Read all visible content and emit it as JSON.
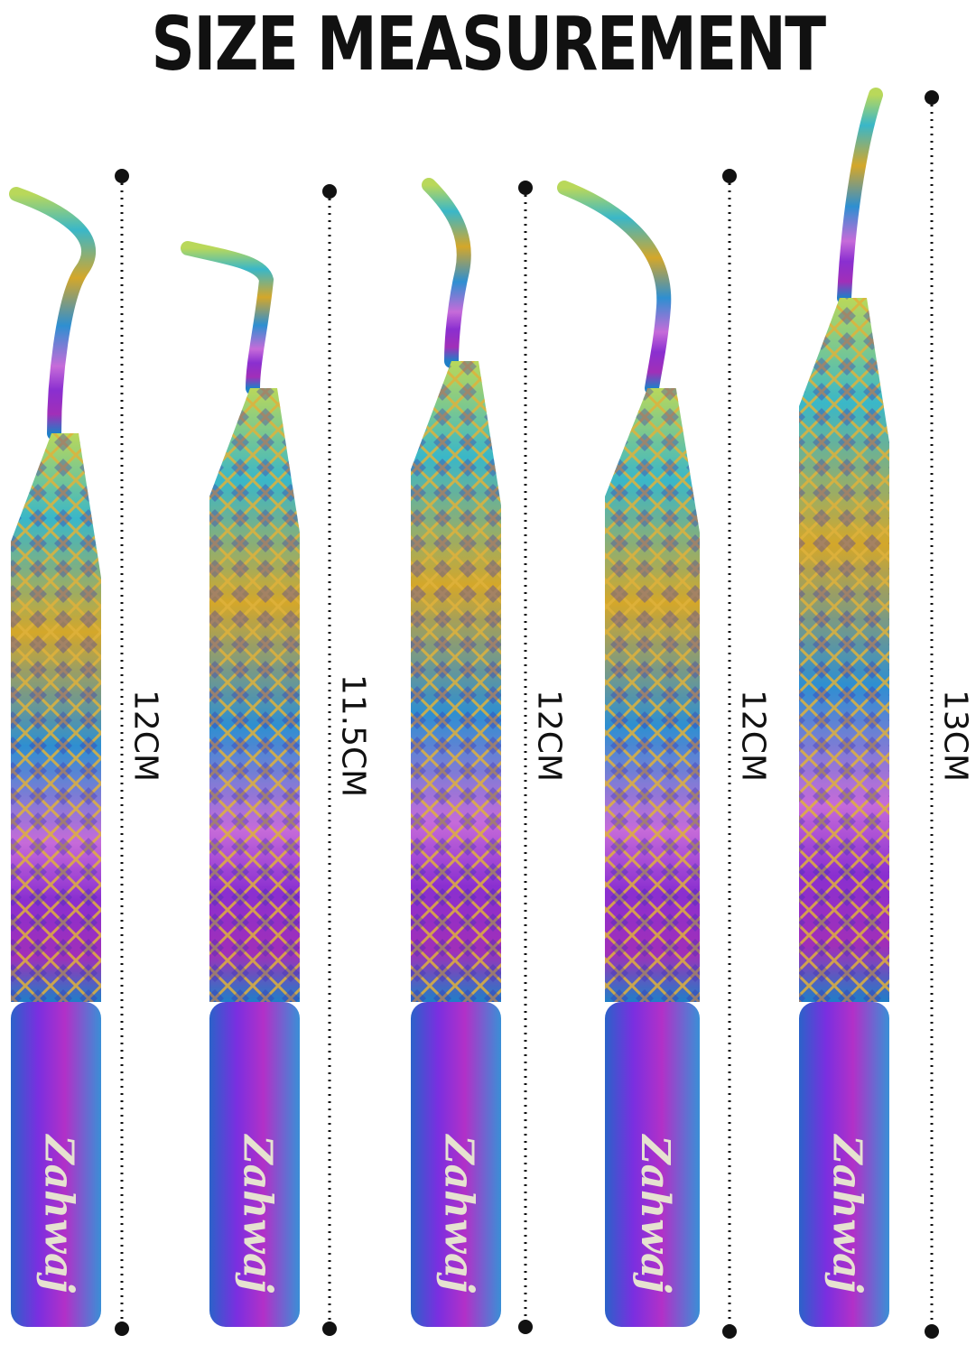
{
  "title": "SIZE MEASUREMENT",
  "tweezers": [
    {
      "size": "12CM",
      "brand": "Zahwaj"
    },
    {
      "size": "11.5CM",
      "brand": "Zahwaj"
    },
    {
      "size": "12CM",
      "brand": "Zahwaj"
    },
    {
      "size": "12CM",
      "brand": "Zahwaj"
    },
    {
      "size": "13CM",
      "brand": "Zahwaj"
    }
  ],
  "colors": {
    "title": "#111111",
    "measure_line": "#111111",
    "brand_text": "#e6e2d0"
  }
}
